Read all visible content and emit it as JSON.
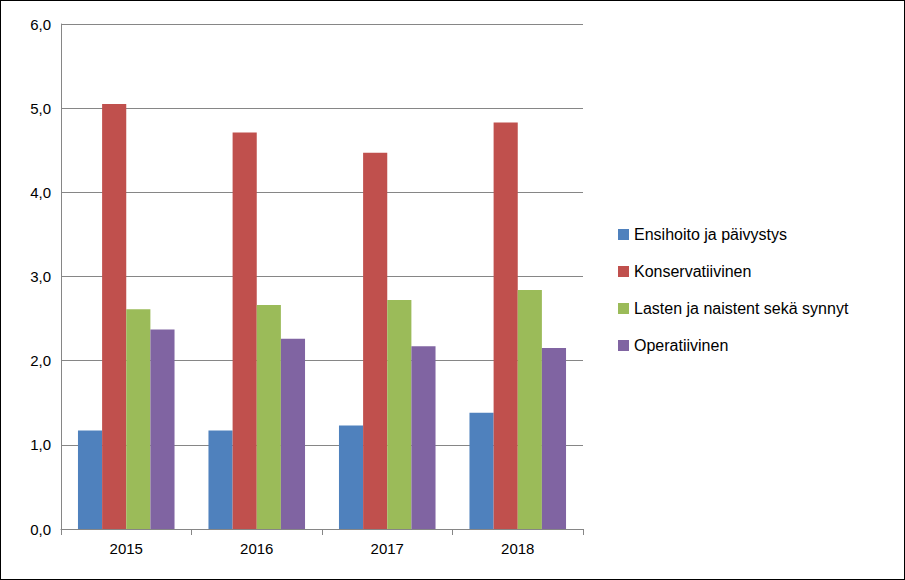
{
  "chart_data": {
    "type": "bar",
    "categories": [
      "2015",
      "2016",
      "2017",
      "2018"
    ],
    "series": [
      {
        "name": "Ensihoito ja päivystys",
        "color": "#4f81bd",
        "values": [
          1.17,
          1.17,
          1.23,
          1.38
        ]
      },
      {
        "name": "Konservatiivinen",
        "color": "#c0504d",
        "values": [
          5.05,
          4.71,
          4.47,
          4.83
        ]
      },
      {
        "name": "Lasten ja naistent sekä synnyt",
        "color": "#9bbb59",
        "values": [
          2.61,
          2.66,
          2.72,
          2.84
        ]
      },
      {
        "name": "Operatiivinen",
        "color": "#8064a2",
        "values": [
          2.37,
          2.26,
          2.17,
          2.15
        ]
      }
    ],
    "ylim": [
      0,
      6
    ],
    "yticks": [
      {
        "value": 0,
        "label": "0,0"
      },
      {
        "value": 1,
        "label": "1,0"
      },
      {
        "value": 2,
        "label": "2,0"
      },
      {
        "value": 3,
        "label": "3,0"
      },
      {
        "value": 4,
        "label": "4,0"
      },
      {
        "value": 5,
        "label": "5,0"
      },
      {
        "value": 6,
        "label": "6,0"
      }
    ],
    "grid": true,
    "legend": "right"
  }
}
